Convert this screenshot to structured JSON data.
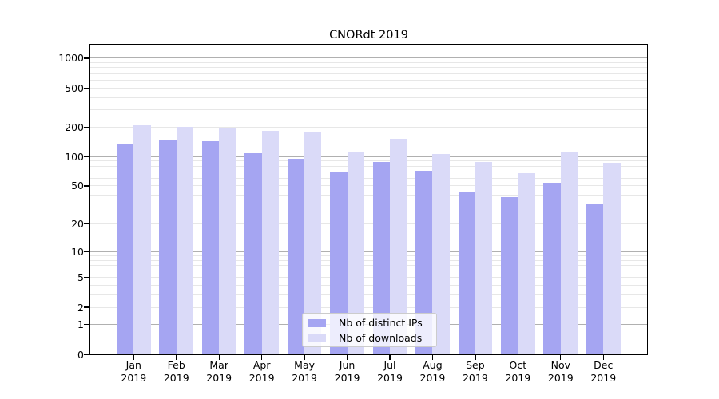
{
  "chart_data": {
    "type": "bar",
    "title": "CNORdt 2019",
    "categories": [
      "Jan",
      "Feb",
      "Mar",
      "Apr",
      "May",
      "Jun",
      "Jul",
      "Aug",
      "Sep",
      "Oct",
      "Nov",
      "Dec"
    ],
    "category_year": "2019",
    "series": [
      {
        "name": "Nb of distinct IPs",
        "color": "#a5a5f2",
        "values": [
          135,
          147,
          142,
          108,
          94,
          69,
          88,
          71,
          43,
          38,
          54,
          32
        ]
      },
      {
        "name": "Nb of downloads",
        "color": "#dadaf8",
        "values": [
          207,
          199,
          194,
          184,
          180,
          111,
          152,
          107,
          88,
          68,
          112,
          86
        ]
      }
    ],
    "y_axis": {
      "scale": "log1p",
      "ticks": [
        1000,
        500,
        200,
        100,
        50,
        20,
        10,
        5,
        2,
        1,
        0
      ],
      "ylim": [
        0,
        1200
      ]
    },
    "x_axis": {
      "label_line2": "2019"
    },
    "grid": {
      "major": [
        1,
        10,
        100,
        1000
      ],
      "minor": [
        2,
        3,
        4,
        5,
        6,
        7,
        8,
        9,
        20,
        30,
        40,
        50,
        60,
        70,
        80,
        90,
        200,
        300,
        400,
        500,
        600,
        700,
        800,
        900
      ],
      "major_color": "#b0b0b0",
      "minor_color": "#e7e7e7"
    },
    "legend": {
      "position": "lower-center"
    },
    "frame_color": "#000000",
    "background_color": "#ffffff"
  }
}
